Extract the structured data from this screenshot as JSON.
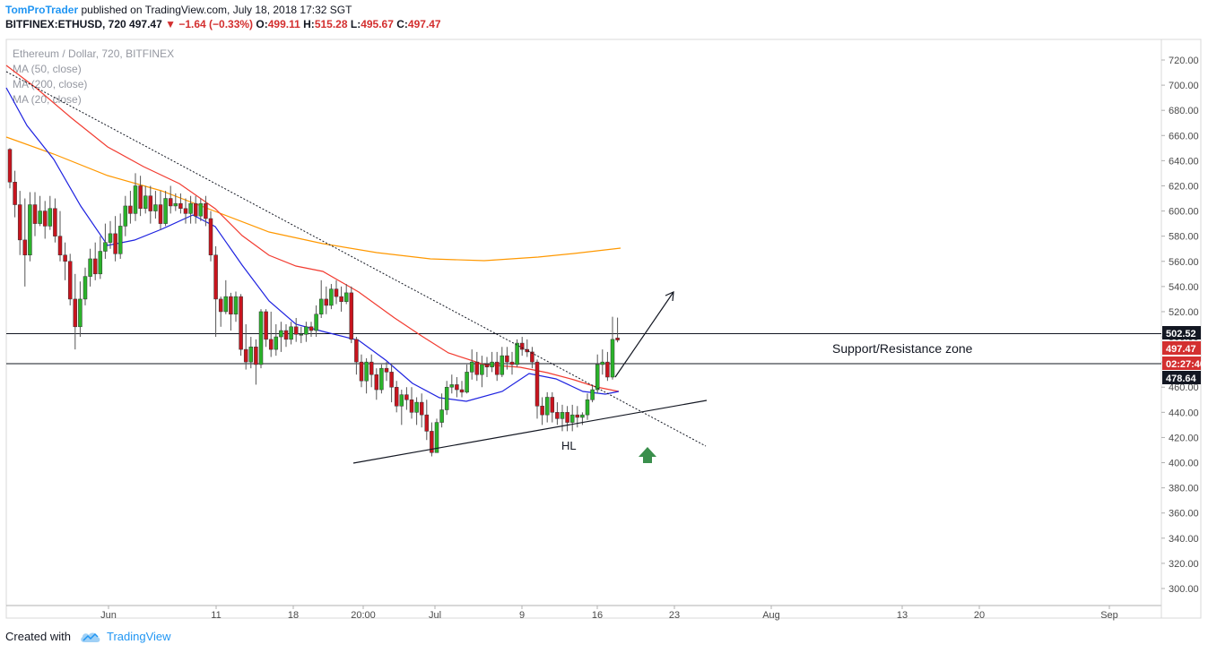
{
  "header": {
    "author": "TomProTrader",
    "published": " published on TradingView.com, July 18, 2018 17:32 SGT",
    "symbol": "BITFINEX:ETHUSD, 720",
    "last": "497.47",
    "change": "−1.64 (−0.33%)",
    "o_label": "O:",
    "o": "499.11",
    "h_label": "H:",
    "h": "515.28",
    "l_label": "L:",
    "l": "495.67",
    "c_label": "C:",
    "c": "497.47"
  },
  "footer": {
    "created_with": "Created with",
    "brand": "TradingView"
  },
  "chart_data": {
    "type": "candlestick",
    "legend": [
      {
        "label": "Ethereum / Dollar, 720, BITFINEX"
      },
      {
        "label": "MA (50, close)",
        "color": "#f23b30"
      },
      {
        "label": "MA (200, close)",
        "color": "#ff9800"
      },
      {
        "label": "MA (20, close)",
        "color": "#1e22e0"
      }
    ],
    "y_ticks": [
      300,
      320,
      340,
      360,
      380,
      400,
      420,
      440,
      460,
      480,
      500,
      520,
      540,
      560,
      580,
      600,
      620,
      640,
      660,
      680,
      700,
      720
    ],
    "x_ticks": [
      "Jun",
      "11",
      "18",
      "20:00",
      "Jul",
      "9",
      "16",
      "23",
      "Aug",
      "13",
      "20",
      "Sep"
    ],
    "price_tags": [
      {
        "value": "502.52",
        "bg": "#131722",
        "fg": "#ffffff"
      },
      {
        "value": "497.47",
        "bg": "#d32f2f",
        "fg": "#ffffff"
      },
      {
        "value": "02:27:40",
        "bg": "#d32f2f",
        "fg": "#ffffff"
      },
      {
        "value": "478.64",
        "bg": "#131722",
        "fg": "#ffffff"
      }
    ],
    "zone": {
      "label": "Support/Resistance zone",
      "upper": 502.52,
      "lower": 478.64
    },
    "annotation": "HL",
    "up_color": "#2ab32a",
    "down_color": "#c8141e",
    "candles": [
      [
        649,
        623,
        650,
        618
      ],
      [
        623,
        605,
        632,
        595
      ],
      [
        605,
        577,
        616,
        565
      ],
      [
        577,
        565,
        610,
        540
      ],
      [
        565,
        605,
        615,
        560
      ],
      [
        605,
        590,
        615,
        580
      ],
      [
        590,
        600,
        612,
        588
      ],
      [
        600,
        588,
        608,
        578
      ],
      [
        588,
        602,
        612,
        585
      ],
      [
        602,
        580,
        610,
        575
      ],
      [
        580,
        565,
        600,
        560
      ],
      [
        565,
        560,
        575,
        545
      ],
      [
        560,
        530,
        566,
        525
      ],
      [
        530,
        508,
        550,
        490
      ],
      [
        508,
        530,
        544,
        500
      ],
      [
        530,
        548,
        555,
        525
      ],
      [
        548,
        562,
        570,
        540
      ],
      [
        562,
        550,
        575,
        545
      ],
      [
        550,
        568,
        580,
        546
      ],
      [
        568,
        575,
        590,
        562
      ],
      [
        575,
        582,
        592,
        570
      ],
      [
        582,
        566,
        596,
        560
      ],
      [
        566,
        588,
        598,
        562
      ],
      [
        588,
        604,
        612,
        580
      ],
      [
        604,
        598,
        616,
        590
      ],
      [
        598,
        620,
        630,
        592
      ],
      [
        620,
        602,
        628,
        596
      ],
      [
        602,
        612,
        620,
        598
      ],
      [
        612,
        600,
        620,
        590
      ],
      [
        600,
        605,
        616,
        594
      ],
      [
        605,
        590,
        616,
        585
      ],
      [
        590,
        610,
        616,
        588
      ],
      [
        610,
        604,
        620,
        598
      ],
      [
        604,
        606,
        614,
        600
      ],
      [
        606,
        602,
        614,
        598
      ],
      [
        602,
        598,
        610,
        590
      ],
      [
        598,
        606,
        612,
        590
      ],
      [
        606,
        596,
        612,
        590
      ],
      [
        596,
        606,
        610,
        592
      ],
      [
        606,
        594,
        612,
        588
      ],
      [
        594,
        565,
        600,
        560
      ],
      [
        565,
        530,
        572,
        500
      ],
      [
        530,
        520,
        532,
        508
      ],
      [
        520,
        532,
        545,
        518
      ],
      [
        532,
        518,
        535,
        505
      ],
      [
        518,
        532,
        536,
        512
      ],
      [
        532,
        490,
        534,
        485
      ],
      [
        490,
        480,
        510,
        474
      ],
      [
        480,
        492,
        500,
        475
      ],
      [
        492,
        478,
        498,
        462
      ],
      [
        478,
        520,
        522,
        475
      ],
      [
        520,
        498,
        522,
        492
      ],
      [
        498,
        490,
        520,
        484
      ],
      [
        490,
        500,
        510,
        485
      ],
      [
        500,
        505,
        512,
        488
      ],
      [
        505,
        498,
        510,
        492
      ],
      [
        498,
        508,
        512,
        494
      ],
      [
        508,
        502,
        515,
        496
      ],
      [
        502,
        502,
        508,
        495
      ],
      [
        502,
        508,
        512,
        496
      ],
      [
        508,
        505,
        512,
        500
      ],
      [
        505,
        518,
        525,
        500
      ],
      [
        518,
        530,
        545,
        515
      ],
      [
        530,
        525,
        540,
        518
      ],
      [
        525,
        538,
        542,
        522
      ],
      [
        538,
        532,
        545,
        526
      ],
      [
        532,
        528,
        540,
        520
      ],
      [
        528,
        535,
        542,
        526
      ],
      [
        535,
        498,
        540,
        495
      ],
      [
        498,
        480,
        500,
        470
      ],
      [
        480,
        465,
        486,
        460
      ],
      [
        465,
        480,
        483,
        455
      ],
      [
        480,
        470,
        486,
        460
      ],
      [
        470,
        458,
        475,
        450
      ],
      [
        458,
        475,
        478,
        455
      ],
      [
        475,
        472,
        480,
        465
      ],
      [
        472,
        460,
        478,
        448
      ],
      [
        460,
        445,
        465,
        440
      ],
      [
        445,
        454,
        458,
        430
      ],
      [
        454,
        450,
        460,
        442
      ],
      [
        450,
        440,
        460,
        435
      ],
      [
        440,
        448,
        452,
        430
      ],
      [
        448,
        438,
        455,
        428
      ],
      [
        438,
        425,
        450,
        418
      ],
      [
        425,
        408,
        432,
        405
      ],
      [
        408,
        432,
        435,
        410
      ],
      [
        432,
        442,
        455,
        428
      ],
      [
        442,
        460,
        465,
        438
      ],
      [
        460,
        462,
        470,
        455
      ],
      [
        462,
        458,
        468,
        452
      ],
      [
        458,
        456,
        465,
        452
      ],
      [
        456,
        472,
        478,
        455
      ],
      [
        472,
        480,
        490,
        466
      ],
      [
        480,
        470,
        488,
        465
      ],
      [
        470,
        478,
        485,
        460
      ],
      [
        478,
        476,
        484,
        468
      ],
      [
        476,
        480,
        488,
        472
      ],
      [
        480,
        470,
        488,
        465
      ],
      [
        470,
        485,
        492,
        468
      ],
      [
        485,
        480,
        492,
        474
      ],
      [
        480,
        478,
        488,
        470
      ],
      [
        478,
        495,
        498,
        476
      ],
      [
        495,
        490,
        500,
        485
      ],
      [
        490,
        488,
        498,
        484
      ],
      [
        488,
        480,
        492,
        475
      ],
      [
        480,
        445,
        482,
        435
      ],
      [
        445,
        438,
        452,
        430
      ],
      [
        438,
        452,
        456,
        432
      ],
      [
        452,
        440,
        456,
        432
      ],
      [
        440,
        435,
        448,
        430
      ],
      [
        435,
        440,
        446,
        425
      ],
      [
        440,
        432,
        445,
        425
      ],
      [
        432,
        438,
        446,
        425
      ],
      [
        438,
        436,
        445,
        428
      ],
      [
        436,
        438,
        440,
        430
      ],
      [
        438,
        450,
        455,
        434
      ],
      [
        450,
        458,
        462,
        448
      ],
      [
        458,
        478,
        486,
        455
      ],
      [
        478,
        480,
        490,
        470
      ],
      [
        480,
        468,
        488,
        465
      ],
      [
        468,
        498,
        516,
        466
      ],
      [
        499.11,
        497.47,
        515.28,
        495.67
      ]
    ]
  }
}
